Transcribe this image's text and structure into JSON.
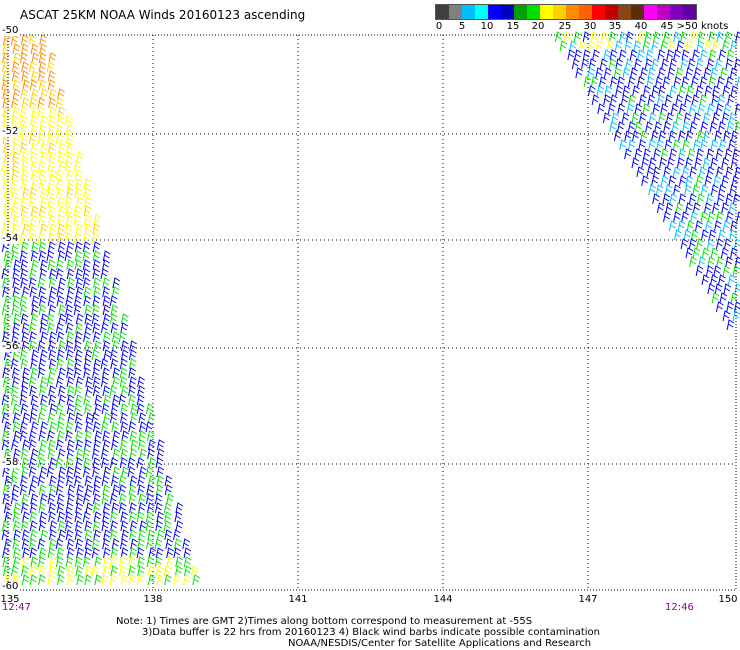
{
  "title": "ASCAT 25KM NOAA Winds 20160123 ascending",
  "legend": {
    "colors": [
      "#404040",
      "#808080",
      "#00bfff",
      "#00ffff",
      "#0000ff",
      "#0000c0",
      "#00a000",
      "#00e000",
      "#ffff00",
      "#ffd000",
      "#ff8c00",
      "#ff6000",
      "#ff0000",
      "#c00000",
      "#8b4513",
      "#5a2d0c",
      "#ff00ff",
      "#c000c0",
      "#8000c0",
      "#6000a0"
    ],
    "labels": [
      "0",
      "5",
      "10",
      "15",
      "20",
      "25",
      "30",
      "35",
      "40",
      "45",
      ">50 knots"
    ]
  },
  "axes": {
    "lat_labels": [
      "-50",
      "-52",
      "-54",
      "-56",
      "-58",
      "-60"
    ],
    "lon_labels": [
      "135",
      "138",
      "141",
      "144",
      "147",
      "150"
    ],
    "lat_range": [
      -60,
      -50
    ],
    "lon_range": [
      135,
      150
    ]
  },
  "times": {
    "left": "12:47",
    "right": "12:46"
  },
  "notes": {
    "line1": "Note: 1) Times are GMT 2)Times along bottom correspond to measurement at -55S",
    "line2": "3)Data buffer is 22 hrs from 20160123 4) Black wind barbs indicate possible contamination",
    "line3": "NOAA/NESDIS/Center for Satellite Applications and Research"
  }
}
